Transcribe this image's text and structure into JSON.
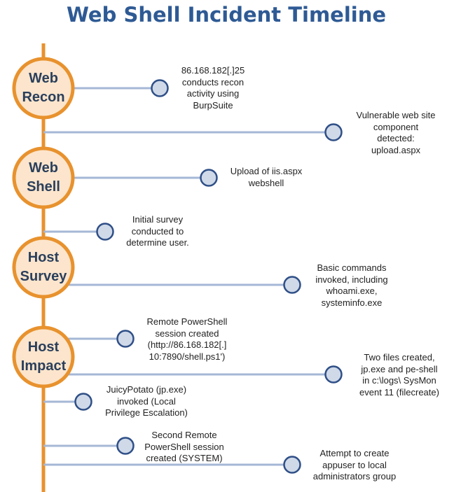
{
  "title": "Web Shell Incident Timeline",
  "colors": {
    "title": "#2e5a94",
    "timeline": "#e8922e",
    "phase_fill": "#fce5cc",
    "phase_border": "#e8922e",
    "connector": "#a5b7d6",
    "dot_fill": "#cfd9e8",
    "dot_border": "#2f4f87"
  },
  "phases": [
    {
      "line1": "Web",
      "line2": "Recon"
    },
    {
      "line1": "Web",
      "line2": "Shell"
    },
    {
      "line1": "Host",
      "line2": "Survey"
    },
    {
      "line1": "Host",
      "line2": "Impact"
    }
  ],
  "events": [
    {
      "lines": [
        "86.168.182[.]25",
        "conducts recon",
        "activity using",
        "BurpSuite"
      ]
    },
    {
      "lines": [
        "Vulnerable web site",
        "component",
        "detected:",
        "upload.aspx"
      ]
    },
    {
      "lines": [
        "Upload of iis.aspx",
        "webshell"
      ]
    },
    {
      "lines": [
        "Initial survey",
        "conducted to",
        "determine user."
      ]
    },
    {
      "lines": [
        "Basic commands",
        "invoked, including",
        "whoami.exe,",
        "systeminfo.exe"
      ]
    },
    {
      "lines": [
        "Remote PowerShell",
        "session created",
        "(http://86.168.182[.]",
        "10:7890/shell.ps1')"
      ]
    },
    {
      "lines": [
        "Two files created,",
        "jp.exe and pe-shell",
        "in c:\\logs\\ SysMon",
        "event 11 (filecreate)"
      ]
    },
    {
      "lines": [
        "JuicyPotato (jp.exe)",
        "invoked (Local",
        "Privilege Escalation)"
      ]
    },
    {
      "lines": [
        "Second Remote",
        "PowerShell session",
        "created (SYSTEM)"
      ]
    },
    {
      "lines": [
        "Attempt to create",
        "appuser to local",
        "administrators group"
      ]
    }
  ]
}
